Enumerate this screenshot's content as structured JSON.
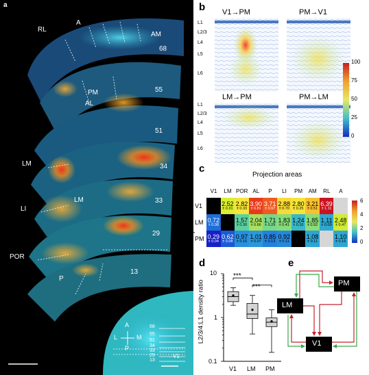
{
  "panels": {
    "a": "a",
    "b": "b",
    "c": "c",
    "d": "d",
    "e": "e"
  },
  "panel_a": {
    "area_labels": {
      "RL": "RL",
      "A": "A",
      "AM": "AM",
      "PM": "PM",
      "AL": "AL",
      "LM": "LM",
      "LM2": "LM",
      "LI": "LI",
      "POR": "POR",
      "P": "P"
    },
    "section_numbers": [
      "68",
      "55",
      "51",
      "34",
      "33",
      "29",
      "13"
    ],
    "compass": {
      "A": "A",
      "P": "P",
      "L": "L",
      "M": "M"
    },
    "inset_numbers": [
      "68",
      "55",
      "51",
      "34",
      "33",
      "29",
      "13"
    ],
    "inset_v1": "V1"
  },
  "panel_b": {
    "titles": [
      "V1→PM",
      "PM→V1",
      "LM→PM",
      "PM→LM"
    ],
    "layers": [
      "L1",
      "L2/3",
      "L4",
      "L5",
      "L6"
    ],
    "colorbar_ticks": [
      "100",
      "75",
      "50",
      "25",
      "0"
    ]
  },
  "panel_c": {
    "title": "Projection areas",
    "ylabel": "Injection site",
    "columns": [
      "V1",
      "LM",
      "POR",
      "AL",
      "P",
      "LI",
      "PM",
      "AM",
      "RL",
      "A"
    ],
    "rows": [
      {
        "label": "V1",
        "cells": [
          {
            "mean": "",
            "sem": "",
            "color": "#000000",
            "tc": "#fff"
          },
          {
            "mean": "2.52",
            "sem": "± 0.31",
            "color": "#d8ef30",
            "tc": "#000"
          },
          {
            "mean": "2.82",
            "sem": "± 0.33",
            "color": "#f6e43a",
            "tc": "#000"
          },
          {
            "mean": "3.90",
            "sem": "± 0.81",
            "color": "#e83a1a",
            "tc": "#fff"
          },
          {
            "mean": "3.71",
            "sem": "± 0.97",
            "color": "#ee5a20",
            "tc": "#fff"
          },
          {
            "mean": "2.88",
            "sem": "± 0.70",
            "color": "#f8da3a",
            "tc": "#000"
          },
          {
            "mean": "2.80",
            "sem": "± 0.25",
            "color": "#f6e43a",
            "tc": "#000"
          },
          {
            "mean": "3.21",
            "sem": "± 0.51",
            "color": "#f8c030",
            "tc": "#000"
          },
          {
            "mean": "6.39",
            "sem": "± 1.11",
            "color": "#c81420",
            "tc": "#fff"
          },
          {
            "mean": "",
            "sem": "",
            "color": "#d6d6d6",
            "tc": "#000"
          }
        ]
      },
      {
        "label": "LM",
        "cells": [
          {
            "mean": "0.72",
            "sem": "± 0.08",
            "color": "#1e6ed8",
            "tc": "#fff"
          },
          {
            "mean": "",
            "sem": "",
            "color": "#000000",
            "tc": "#fff"
          },
          {
            "mean": "1.57",
            "sem": "± 0.30",
            "color": "#5cd0a0",
            "tc": "#000"
          },
          {
            "mean": "2.04",
            "sem": "± 0.66",
            "color": "#a8e060",
            "tc": "#000"
          },
          {
            "mean": "1.71",
            "sem": "± 0.29",
            "color": "#78d888",
            "tc": "#000"
          },
          {
            "mean": "1.83",
            "sem": "± 0.41",
            "color": "#88dc78",
            "tc": "#000"
          },
          {
            "mean": "1.24",
            "sem": "± 0.10",
            "color": "#38b8c8",
            "tc": "#000"
          },
          {
            "mean": "1.85",
            "sem": "± 0.52",
            "color": "#8cdc78",
            "tc": "#000"
          },
          {
            "mean": "1.11",
            "sem": "± 0.09",
            "color": "#2ea8d0",
            "tc": "#000"
          },
          {
            "mean": "2.48",
            "sem": "± 0.47",
            "color": "#d0ec34",
            "tc": "#000"
          }
        ]
      },
      {
        "label": "PM",
        "cells": [
          {
            "mean": "0.29",
            "sem": "± 0.04",
            "color": "#1620c8",
            "tc": "#fff"
          },
          {
            "mean": "0.62",
            "sem": "± 0.08",
            "color": "#1a5ad8",
            "tc": "#fff"
          },
          {
            "mean": "0.97",
            "sem": "± 0.16",
            "color": "#2890dc",
            "tc": "#000"
          },
          {
            "mean": "1.01",
            "sem": "± 0.07",
            "color": "#2a98da",
            "tc": "#000"
          },
          {
            "mean": "0.85",
            "sem": "± 0.13",
            "color": "#2480de",
            "tc": "#000"
          },
          {
            "mean": "0.92",
            "sem": "± 0.11",
            "color": "#2688dc",
            "tc": "#000"
          },
          {
            "mean": "",
            "sem": "",
            "color": "#000000",
            "tc": "#fff"
          },
          {
            "mean": "1.08",
            "sem": "± 0.11",
            "color": "#2ca4d6",
            "tc": "#000"
          },
          {
            "mean": "",
            "sem": "",
            "color": "#d6d6d6",
            "tc": "#000"
          },
          {
            "mean": "1.10",
            "sem": "± 0.16",
            "color": "#2ea6d4",
            "tc": "#000"
          }
        ]
      }
    ],
    "colorbar_ticks": [
      "6",
      "4",
      "2",
      "0"
    ]
  },
  "chart_data": {
    "type": "box",
    "ylabel": "L2/3/4:L1 density ratio",
    "yscale": "log",
    "ylim": [
      0.1,
      10
    ],
    "yticks": [
      "10",
      "1",
      "0.1"
    ],
    "categories": [
      "V1",
      "LM",
      "PM"
    ],
    "boxes": [
      {
        "name": "V1",
        "whisker_low": 1.9,
        "q1": 2.3,
        "median": 3.0,
        "q3": 3.9,
        "whisker_high": 4.8,
        "mean": 3.2
      },
      {
        "name": "LM",
        "whisker_low": 0.42,
        "q1": 0.95,
        "median": 1.2,
        "q3": 2.1,
        "whisker_high": 3.2,
        "mean": 1.5
      },
      {
        "name": "PM",
        "whisker_low": 0.16,
        "q1": 0.62,
        "median": 0.78,
        "q3": 0.98,
        "whisker_high": 1.5,
        "mean": 0.82
      }
    ],
    "significance": [
      "***",
      "***"
    ]
  },
  "panel_e": {
    "nodes": {
      "PM": "PM",
      "LM": "LM",
      "V1": "V1"
    }
  },
  "colors": {
    "red": "#c8202c",
    "green": "#3aa84a"
  }
}
